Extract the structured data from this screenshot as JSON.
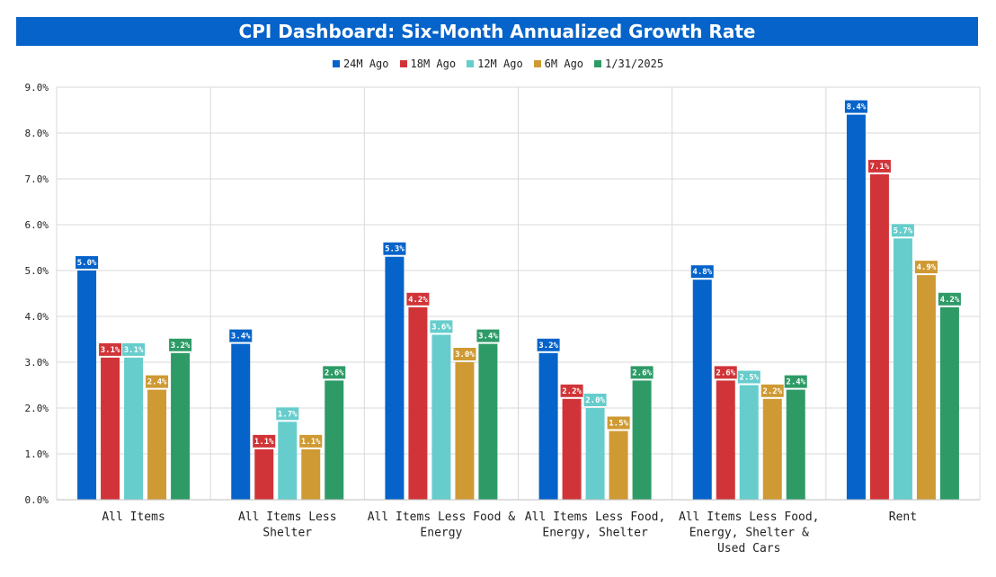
{
  "header": {
    "title": "CPI Dashboard: Six-Month Annualized Growth Rate"
  },
  "colors": {
    "title_bg": "#0563c9",
    "grid": "#d9d9d9"
  },
  "chart_data": {
    "type": "bar",
    "title": "CPI Dashboard: Six-Month Annualized Growth Rate",
    "xlabel": "",
    "ylabel": "",
    "ylim": [
      0,
      9
    ],
    "y_ticks": [
      "0.0%",
      "1.0%",
      "2.0%",
      "3.0%",
      "4.0%",
      "5.0%",
      "6.0%",
      "7.0%",
      "8.0%",
      "9.0%"
    ],
    "legend_position": "top-center",
    "grid": true,
    "categories": [
      [
        "All Items"
      ],
      [
        "All Items Less",
        "Shelter"
      ],
      [
        "All Items Less Food &",
        "Energy"
      ],
      [
        "All Items Less Food,",
        "Energy, Shelter"
      ],
      [
        "All Items Less Food,",
        "Energy, Shelter &",
        "Used Cars"
      ],
      [
        "Rent"
      ]
    ],
    "series": [
      {
        "name": "24M Ago",
        "color": "#0563c9",
        "values": [
          5.0,
          3.4,
          5.3,
          3.2,
          4.8,
          8.4
        ],
        "labels": [
          "5.0%",
          "3.4%",
          "5.3%",
          "3.2%",
          "4.8%",
          "8.4%"
        ]
      },
      {
        "name": "18M Ago",
        "color": "#d13438",
        "values": [
          3.1,
          1.1,
          4.2,
          2.2,
          2.6,
          7.1
        ],
        "labels": [
          "3.1%",
          "1.1%",
          "4.2%",
          "2.2%",
          "2.6%",
          "7.1%"
        ]
      },
      {
        "name": "12M Ago",
        "color": "#66cdcc",
        "values": [
          3.1,
          1.7,
          3.6,
          2.0,
          2.5,
          5.7
        ],
        "labels": [
          "3.1%",
          "1.7%",
          "3.6%",
          "2.0%",
          "2.5%",
          "5.7%"
        ]
      },
      {
        "name": "6M Ago",
        "color": "#cf9a33",
        "values": [
          2.4,
          1.1,
          3.0,
          1.5,
          2.2,
          4.9
        ],
        "labels": [
          "2.4%",
          "1.1%",
          "3.0%",
          "1.5%",
          "2.2%",
          "4.9%"
        ]
      },
      {
        "name": "1/31/2025",
        "color": "#2e9b67",
        "values": [
          3.2,
          2.6,
          3.4,
          2.6,
          2.4,
          4.2
        ],
        "labels": [
          "3.2%",
          "2.6%",
          "3.4%",
          "2.6%",
          "2.4%",
          "4.2%"
        ]
      }
    ]
  }
}
